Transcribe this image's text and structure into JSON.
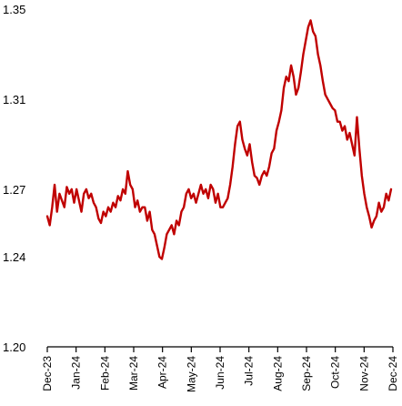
{
  "chart_data": {
    "type": "line",
    "title": "",
    "xlabel": "",
    "ylabel": "",
    "ylim": [
      1.2,
      1.35
    ],
    "yticks": [
      "1.20",
      "1.24",
      "1.27",
      "1.31",
      "1.35"
    ],
    "ytick_values": [
      1.2,
      1.24,
      1.27,
      1.31,
      1.35
    ],
    "xticks": [
      "Dec-23",
      "Jan-24",
      "Feb-24",
      "Mar-24",
      "Apr-24",
      "May-24",
      "Jun-24",
      "Jul-24",
      "Aug-24",
      "Sep-24",
      "Oct-24",
      "Nov-24",
      "Dec-24"
    ],
    "xtick_orientation_note": "labels drawn rotated; some months render mirrored in the original",
    "grid": false,
    "legend": "none",
    "line_color": "#C00000",
    "series": [
      {
        "x_start": "Dec-23",
        "x_end": "Dec-24",
        "values": [
          1.258,
          1.254,
          1.262,
          1.272,
          1.26,
          1.268,
          1.265,
          1.262,
          1.271,
          1.268,
          1.27,
          1.264,
          1.27,
          1.265,
          1.26,
          1.268,
          1.27,
          1.266,
          1.268,
          1.264,
          1.262,
          1.257,
          1.255,
          1.26,
          1.258,
          1.262,
          1.26,
          1.264,
          1.262,
          1.267,
          1.265,
          1.27,
          1.268,
          1.278,
          1.272,
          1.27,
          1.262,
          1.265,
          1.26,
          1.262,
          1.262,
          1.256,
          1.26,
          1.252,
          1.25,
          1.245,
          1.24,
          1.239,
          1.244,
          1.25,
          1.252,
          1.254,
          1.25,
          1.256,
          1.254,
          1.26,
          1.262,
          1.268,
          1.27,
          1.266,
          1.268,
          1.264,
          1.268,
          1.272,
          1.268,
          1.27,
          1.266,
          1.272,
          1.27,
          1.264,
          1.268,
          1.262,
          1.262,
          1.264,
          1.266,
          1.272,
          1.28,
          1.29,
          1.298,
          1.3,
          1.292,
          1.288,
          1.285,
          1.29,
          1.282,
          1.276,
          1.275,
          1.272,
          1.276,
          1.278,
          1.276,
          1.28,
          1.286,
          1.288,
          1.296,
          1.3,
          1.305,
          1.315,
          1.32,
          1.318,
          1.325,
          1.32,
          1.312,
          1.315,
          1.322,
          1.33,
          1.336,
          1.342,
          1.345,
          1.34,
          1.338,
          1.33,
          1.325,
          1.318,
          1.312,
          1.31,
          1.308,
          1.306,
          1.305,
          1.3,
          1.3,
          1.296,
          1.298,
          1.292,
          1.295,
          1.29,
          1.285,
          1.302,
          1.288,
          1.276,
          1.268,
          1.262,
          1.258,
          1.253,
          1.256,
          1.258,
          1.264,
          1.26,
          1.262,
          1.268,
          1.265,
          1.27
        ]
      }
    ]
  }
}
